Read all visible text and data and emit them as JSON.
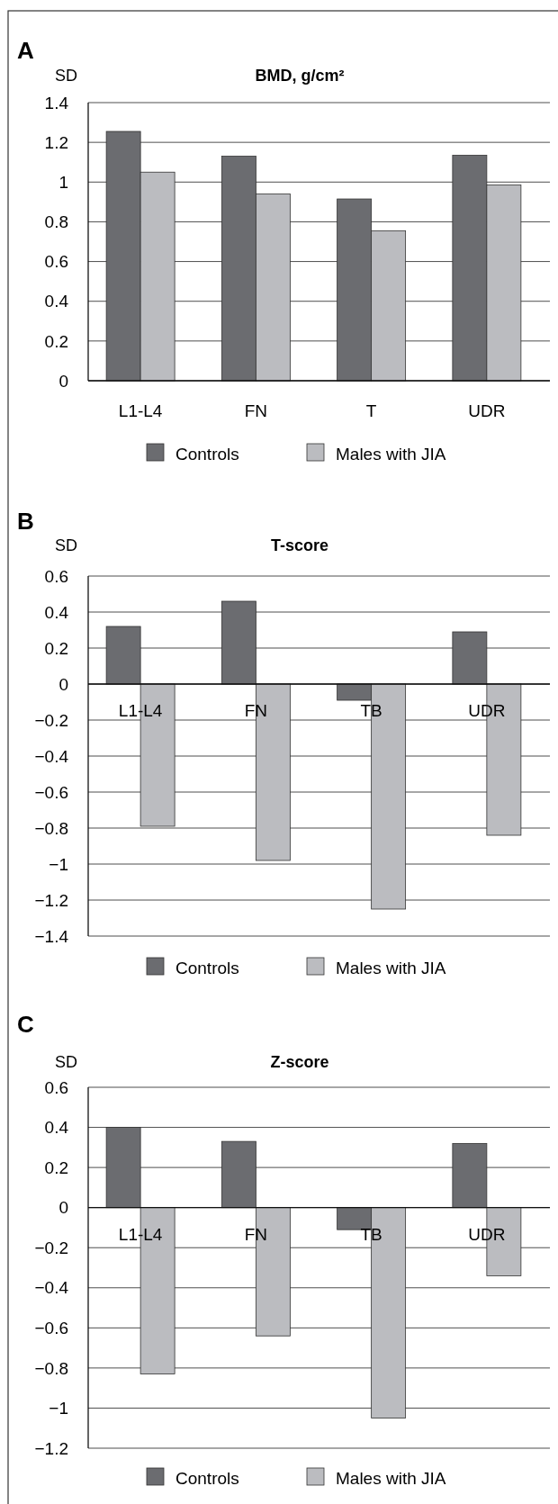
{
  "chart_data": [
    {
      "type": "bar",
      "title": "BMD, g/cm²",
      "ylabel": "SD",
      "annotations": [
        "A"
      ],
      "categories": [
        "L1-L4",
        "FN",
        "T",
        "UDR"
      ],
      "series": [
        {
          "name": "Controls",
          "color": "#6b6c70",
          "values": [
            1.255,
            1.13,
            0.915,
            1.135
          ]
        },
        {
          "name": "Males with JIA",
          "color": "#bbbcc0",
          "values": [
            1.05,
            0.94,
            0.755,
            0.985
          ]
        }
      ],
      "ylim": [
        0,
        1.4
      ],
      "yticks": [
        0,
        0.2,
        0.4,
        0.6,
        0.8,
        1,
        1.2,
        1.4
      ],
      "grid": "y",
      "legend": "bottom"
    },
    {
      "type": "bar",
      "title": "T-score",
      "ylabel": "SD",
      "annotations": [
        "B"
      ],
      "categories": [
        "L1-L4",
        "FN",
        "TB",
        "UDR"
      ],
      "series": [
        {
          "name": "Controls",
          "color": "#6b6c70",
          "values": [
            0.32,
            0.46,
            -0.09,
            0.29
          ]
        },
        {
          "name": "Males with JIA",
          "color": "#bbbcc0",
          "values": [
            -0.79,
            -0.98,
            -1.25,
            -0.84
          ]
        }
      ],
      "ylim": [
        -1.4,
        0.6
      ],
      "yticks": [
        {
          "value": -1.4,
          "label": "−1.4"
        },
        {
          "value": -1.2,
          "label": "−1.2"
        },
        {
          "value": -1,
          "label": "−1"
        },
        {
          "value": -0.8,
          "label": "−0.8"
        },
        {
          "value": -0.6,
          "label": "−0.6"
        },
        {
          "value": -0.4,
          "label": "−0.4"
        },
        {
          "value": -0.2,
          "label": "−0.2"
        },
        0,
        0.2,
        0.4,
        0.6
      ],
      "grid": "y",
      "legend": "bottom"
    },
    {
      "type": "bar",
      "title": "Z-score",
      "ylabel": "SD",
      "annotations": [
        "C"
      ],
      "categories": [
        "L1-L4",
        "FN",
        "TB",
        "UDR"
      ],
      "series": [
        {
          "name": "Controls",
          "color": "#6b6c70",
          "values": [
            0.4,
            0.33,
            -0.11,
            0.32
          ]
        },
        {
          "name": "Males with JIA",
          "color": "#bbbcc0",
          "values": [
            -0.83,
            -0.64,
            -1.05,
            -0.34
          ]
        }
      ],
      "ylim": [
        -1.2,
        0.6
      ],
      "yticks": [
        {
          "value": -1.2,
          "label": "−1.2"
        },
        {
          "value": -1,
          "label": "−1"
        },
        {
          "value": -0.8,
          "label": "−0.8"
        },
        {
          "value": -0.6,
          "label": "−0.6"
        },
        {
          "value": -0.4,
          "label": "−0.4"
        },
        {
          "value": -0.2,
          "label": "−0.2"
        },
        0,
        0.2,
        0.4,
        0.6
      ],
      "grid": "y",
      "legend": "bottom"
    }
  ]
}
